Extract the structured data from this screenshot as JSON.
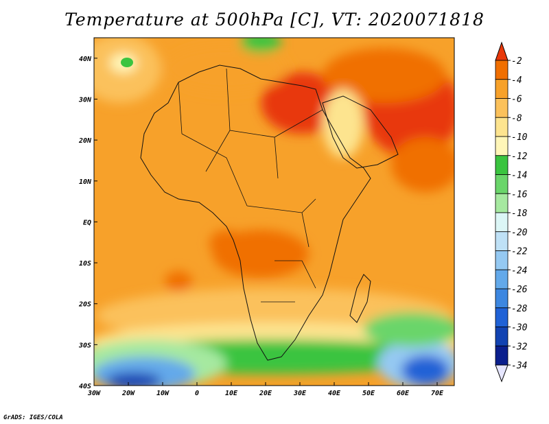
{
  "title": "Temperature at 500hPa [C], VT: 2020071818",
  "credit": "GrADS: IGES/COLA",
  "axes": {
    "x_ticks": [
      "30W",
      "20W",
      "10W",
      "0",
      "10E",
      "20E",
      "30E",
      "40E",
      "50E",
      "60E",
      "70E"
    ],
    "y_ticks": [
      "40N",
      "30N",
      "20N",
      "10N",
      "EQ",
      "10S",
      "20S",
      "30S",
      "40S"
    ]
  },
  "colorbar": {
    "labels": [
      "-2",
      "-4",
      "-6",
      "-8",
      "-10",
      "-12",
      "-14",
      "-16",
      "-18",
      "-20",
      "-22",
      "-24",
      "-26",
      "-28",
      "-30",
      "-32",
      "-34"
    ],
    "colors": [
      "#e8380a",
      "#f06f00",
      "#f7a12a",
      "#fbc15b",
      "#fde48f",
      "#fff6b8",
      "#3ac43f",
      "#6ad56a",
      "#a6e9a0",
      "#dcf6f6",
      "#bfe1f6",
      "#95c9f2",
      "#63a9ea",
      "#3d87e0",
      "#2062d6",
      "#1243b2",
      "#0b1f8d",
      "#e6e6ff"
    ]
  }
}
